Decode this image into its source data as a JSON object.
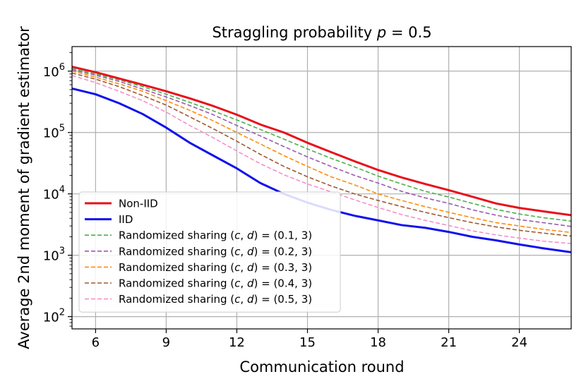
{
  "chart_data": {
    "type": "line",
    "title": "Straggling probability p = 0.5",
    "xlabel": "Communication round",
    "ylabel": "Average 2nd moment of gradient estimator",
    "xlim": [
      5,
      26.2
    ],
    "ylim_log10": [
      1.8,
      6.4
    ],
    "yscale": "log",
    "grid": true,
    "legend_position": "lower-left",
    "x_ticks": [
      6,
      9,
      12,
      15,
      18,
      21,
      24
    ],
    "x_tick_labels": [
      "6",
      "9",
      "12",
      "15",
      "18",
      "21",
      "24"
    ],
    "y_ticks_log10": [
      2,
      3,
      4,
      5,
      6
    ],
    "y_tick_labels": [
      {
        "base": "10",
        "exp": "2"
      },
      {
        "base": "10",
        "exp": "3"
      },
      {
        "base": "10",
        "exp": "4"
      },
      {
        "base": "10",
        "exp": "5"
      },
      {
        "base": "10",
        "exp": "6"
      }
    ],
    "x": [
      5,
      6,
      7,
      8,
      9,
      10,
      11,
      12,
      13,
      14,
      15,
      16,
      17,
      18,
      19,
      20,
      21,
      22,
      23,
      24,
      25,
      26.2
    ],
    "series": [
      {
        "name": "Non-IID",
        "color": "#e8101a",
        "style": "solid",
        "width": 3,
        "values": [
          1180000,
          960000,
          760000,
          600000,
          470000,
          360000,
          270000,
          195000,
          135000,
          100000,
          68000,
          48000,
          34000,
          24500,
          18500,
          14500,
          11500,
          9000,
          7000,
          5900,
          5200,
          4500
        ]
      },
      {
        "name": "IID",
        "color": "#1010ee",
        "style": "solid",
        "width": 3,
        "values": [
          520000,
          420000,
          300000,
          200000,
          120000,
          68000,
          42000,
          26000,
          15000,
          10000,
          7200,
          5500,
          4400,
          3700,
          3100,
          2800,
          2400,
          2000,
          1750,
          1500,
          1300,
          1120
        ]
      },
      {
        "name": "Randomized sharing (c, d) = (0.1, 3)",
        "color": "#4bb04b",
        "style": "dashed",
        "width": 1.6,
        "values": [
          1100000,
          900000,
          720000,
          560000,
          420000,
          310000,
          225000,
          160000,
          112000,
          78000,
          54000,
          38000,
          27500,
          19500,
          14500,
          11000,
          8900,
          7000,
          5600,
          4700,
          4100,
          3600
        ]
      },
      {
        "name": "Randomized sharing (c, d) = (0.2, 3)",
        "color": "#9a5bb0",
        "style": "dashed",
        "width": 1.6,
        "values": [
          1050000,
          860000,
          680000,
          510000,
          380000,
          275000,
          195000,
          130000,
          88000,
          59000,
          40000,
          28000,
          20000,
          15000,
          11000,
          8600,
          7000,
          5500,
          4500,
          3800,
          3400,
          2950
        ]
      },
      {
        "name": "Randomized sharing (c, d) = (0.3, 3)",
        "color": "#ff8c0a",
        "style": "dashed",
        "width": 1.6,
        "values": [
          1000000,
          800000,
          620000,
          470000,
          330000,
          230000,
          155000,
          100000,
          65000,
          42000,
          28000,
          19000,
          14000,
          10000,
          7800,
          6200,
          5000,
          4100,
          3400,
          3000,
          2650,
          2350
        ]
      },
      {
        "name": "Randomized sharing (c, d) = (0.4, 3)",
        "color": "#a0582e",
        "style": "dashed",
        "width": 1.6,
        "values": [
          930000,
          740000,
          560000,
          400000,
          280000,
          180000,
          115000,
          72000,
          44000,
          28000,
          19000,
          13500,
          10000,
          7800,
          6200,
          5000,
          4100,
          3400,
          2900,
          2550,
          2300,
          2050
        ]
      },
      {
        "name": "Randomized sharing (c, d) = (0.5, 3)",
        "color": "#f490c8",
        "style": "dashed",
        "width": 1.6,
        "values": [
          850000,
          650000,
          470000,
          330000,
          215000,
          130000,
          82000,
          50000,
          31000,
          20500,
          14500,
          10800,
          8000,
          6000,
          4600,
          3700,
          3050,
          2500,
          2150,
          1900,
          1700,
          1550
        ]
      }
    ]
  }
}
